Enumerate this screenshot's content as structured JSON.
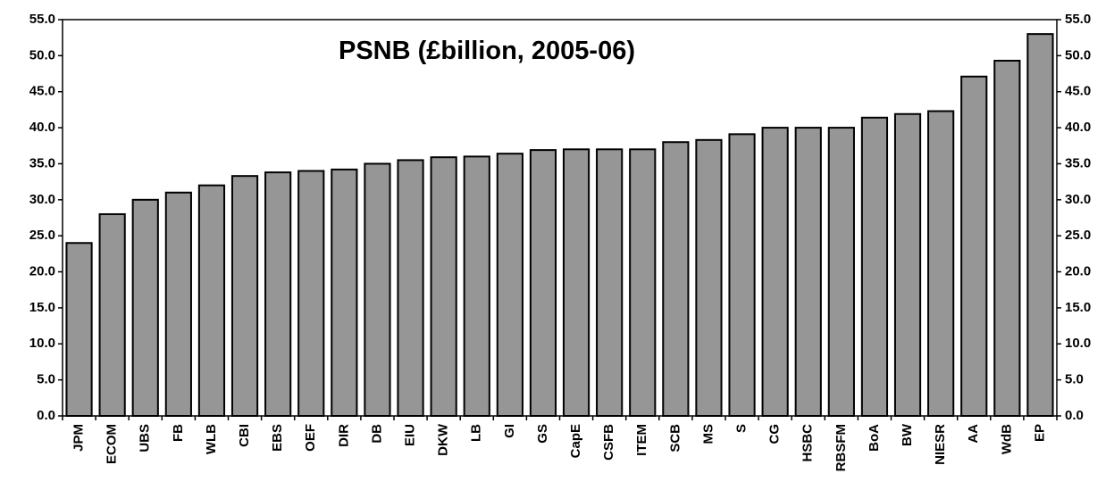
{
  "chart_data": {
    "type": "bar",
    "title": "PSNB (£billion, 2005-06)",
    "categories": [
      "JPM",
      "ECOM",
      "UBS",
      "FB",
      "WLB",
      "CBI",
      "EBS",
      "OEF",
      "DIR",
      "DB",
      "EIU",
      "DKW",
      "LB",
      "GI",
      "GS",
      "CapE",
      "CSFB",
      "ITEM",
      "SCB",
      "MS",
      "S",
      "CG",
      "HSBC",
      "RBSFM",
      "BoA",
      "BW",
      "NIESR",
      "AA",
      "WdB",
      "EP"
    ],
    "values": [
      24.0,
      28.0,
      30.0,
      31.0,
      32.0,
      33.3,
      33.8,
      34.0,
      34.2,
      35.0,
      35.5,
      35.9,
      36.0,
      36.4,
      36.9,
      37.0,
      37.0,
      37.0,
      38.0,
      38.3,
      39.1,
      40.0,
      40.0,
      40.0,
      41.4,
      41.9,
      42.3,
      47.1,
      49.3,
      53.0
    ],
    "color": "#969696",
    "ylim": [
      0,
      55
    ],
    "yticks": [
      {
        "value": 0,
        "label": "0.0"
      },
      {
        "value": 5,
        "label": "5.0"
      },
      {
        "value": 10,
        "label": "10.0"
      },
      {
        "value": 15,
        "label": "15.0"
      },
      {
        "value": 20,
        "label": "20.0"
      },
      {
        "value": 25,
        "label": "25.0"
      },
      {
        "value": 30,
        "label": "30.0"
      },
      {
        "value": 35,
        "label": "35.0"
      },
      {
        "value": 40,
        "label": "40.0"
      },
      {
        "value": 45,
        "label": "45.0"
      },
      {
        "value": 50,
        "label": "50.0"
      },
      {
        "value": 55,
        "label": "55.0"
      }
    ],
    "y2lim": [
      0,
      55
    ],
    "y2ticks": [
      {
        "value": 0,
        "label": "0.0"
      },
      {
        "value": 5,
        "label": "5.0"
      },
      {
        "value": 10,
        "label": "10.0"
      },
      {
        "value": 15,
        "label": "15.0"
      },
      {
        "value": 20,
        "label": "20.0"
      },
      {
        "value": 25,
        "label": "25.0"
      },
      {
        "value": 30,
        "label": "30.0"
      },
      {
        "value": 35,
        "label": "35.0"
      },
      {
        "value": 40,
        "label": "40.0"
      },
      {
        "value": 45,
        "label": "45.0"
      },
      {
        "value": 50,
        "label": "50.0"
      },
      {
        "value": 55,
        "label": "55.0"
      }
    ],
    "grid": false
  }
}
